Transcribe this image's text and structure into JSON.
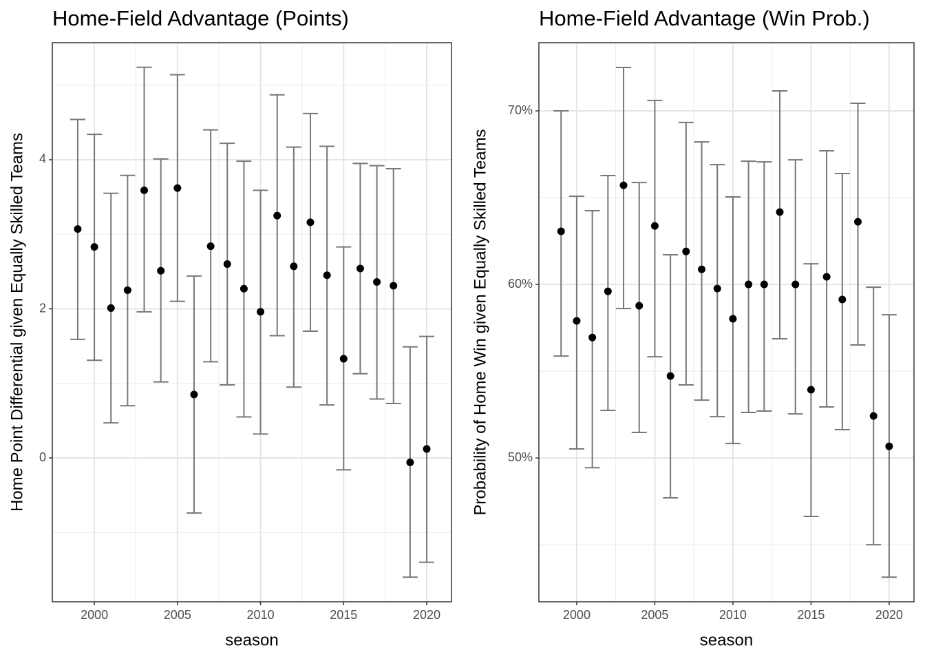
{
  "chart_data": [
    {
      "type": "errorbar",
      "title": "Home-Field Advantage (Points)",
      "x_label": "season",
      "y_label": "Home Point Differential given Equally Skilled Teams",
      "x": [
        1999,
        2000,
        2001,
        2002,
        2003,
        2004,
        2005,
        2006,
        2007,
        2008,
        2009,
        2010,
        2011,
        2012,
        2013,
        2014,
        2015,
        2016,
        2017,
        2018,
        2019,
        2020
      ],
      "values": [
        3.07,
        2.83,
        2.01,
        2.25,
        3.59,
        2.51,
        3.62,
        0.85,
        2.84,
        2.6,
        2.27,
        1.96,
        3.25,
        2.57,
        3.16,
        2.45,
        1.33,
        2.54,
        2.36,
        2.31,
        -0.06,
        0.12
      ],
      "ymin": [
        1.59,
        1.31,
        0.47,
        0.7,
        1.96,
        1.02,
        2.1,
        -0.74,
        1.29,
        0.98,
        0.55,
        0.32,
        1.64,
        0.95,
        1.7,
        0.71,
        -0.16,
        1.13,
        0.79,
        0.73,
        -1.6,
        -1.4
      ],
      "ymax": [
        4.54,
        4.34,
        3.55,
        3.79,
        5.24,
        4.01,
        5.14,
        2.44,
        4.4,
        4.22,
        3.98,
        3.59,
        4.87,
        4.17,
        4.62,
        4.18,
        2.83,
        3.95,
        3.92,
        3.88,
        1.49,
        1.63
      ],
      "point_color": "#000000",
      "bar_color": "#777777",
      "xlim": [
        1997.47,
        2021.49
      ],
      "ylim": [
        -1.93,
        5.57
      ],
      "xticks": [
        2000,
        2005,
        2010,
        2015,
        2020
      ],
      "yticks": [
        0,
        2,
        4
      ],
      "grid": true
    },
    {
      "type": "errorbar",
      "title": "Home-Field Advantage (Win Prob.)",
      "x_label": "season",
      "y_label": "Probability of Home Win given Equally Skilled Teams",
      "x": [
        1999,
        2000,
        2001,
        2002,
        2003,
        2004,
        2005,
        2006,
        2007,
        2008,
        2009,
        2010,
        2011,
        2012,
        2013,
        2014,
        2015,
        2016,
        2017,
        2018,
        2019,
        2020
      ],
      "values": [
        63.06,
        57.9,
        56.94,
        59.6,
        65.71,
        58.77,
        63.37,
        54.72,
        61.9,
        60.87,
        59.76,
        58.02,
        60.0,
        60.0,
        64.17,
        60.0,
        53.93,
        60.44,
        59.13,
        63.61,
        52.42,
        50.67
      ],
      "ymin": [
        55.87,
        50.52,
        49.44,
        52.74,
        58.61,
        51.47,
        55.83,
        47.7,
        54.21,
        53.33,
        52.38,
        50.83,
        52.62,
        52.7,
        56.87,
        52.54,
        46.63,
        52.94,
        51.63,
        56.51,
        45.0,
        43.13
      ],
      "ymax": [
        70.0,
        65.08,
        64.25,
        66.27,
        72.5,
        65.87,
        70.6,
        61.71,
        69.33,
        68.21,
        66.9,
        65.04,
        67.1,
        67.06,
        71.15,
        67.18,
        61.19,
        67.7,
        66.39,
        70.44,
        59.84,
        58.25
      ],
      "point_color": "#000000",
      "bar_color": "#777777",
      "xlim": [
        1997.58,
        2021.59
      ],
      "ylim": [
        41.71,
        73.93
      ],
      "xticks": [
        2000,
        2005,
        2010,
        2015,
        2020
      ],
      "yticks": [
        {
          "value": 50,
          "label": "50%"
        },
        {
          "value": 60,
          "label": "60%"
        },
        {
          "value": 70,
          "label": "70%"
        }
      ],
      "grid": true
    }
  ]
}
